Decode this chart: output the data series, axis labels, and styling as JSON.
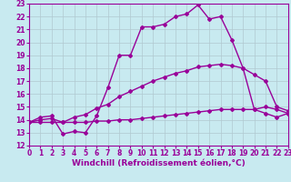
{
  "xlabel": "Windchill (Refroidissement éolien,°C)",
  "ylabel": "",
  "xlim": [
    0,
    23
  ],
  "ylim": [
    12,
    23
  ],
  "xticks": [
    0,
    1,
    2,
    3,
    4,
    5,
    6,
    7,
    8,
    9,
    10,
    11,
    12,
    13,
    14,
    15,
    16,
    17,
    18,
    19,
    20,
    21,
    22,
    23
  ],
  "yticks": [
    12,
    13,
    14,
    15,
    16,
    17,
    18,
    19,
    20,
    21,
    22,
    23
  ],
  "bg_color": "#c8eaf0",
  "line_color": "#990099",
  "grid_color": "#b0c8d0",
  "line1_x": [
    0,
    1,
    2,
    3,
    4,
    5,
    6,
    7,
    8,
    9,
    10,
    11,
    12,
    13,
    14,
    15,
    16,
    17,
    18,
    19,
    20,
    21,
    22,
    23
  ],
  "line1_y": [
    13.8,
    14.2,
    14.3,
    12.9,
    13.1,
    13.0,
    14.3,
    16.5,
    19.0,
    19.0,
    21.2,
    21.2,
    21.4,
    22.0,
    22.2,
    22.9,
    21.8,
    22.0,
    20.2,
    18.0,
    14.8,
    15.0,
    14.8,
    14.5
  ],
  "line2_x": [
    0,
    1,
    2,
    3,
    4,
    5,
    6,
    7,
    8,
    9,
    10,
    11,
    12,
    13,
    14,
    15,
    16,
    17,
    18,
    19,
    20,
    21,
    22,
    23
  ],
  "line2_y": [
    13.8,
    14.0,
    14.1,
    13.8,
    14.2,
    14.4,
    14.9,
    15.2,
    15.8,
    16.2,
    16.6,
    17.0,
    17.3,
    17.6,
    17.8,
    18.1,
    18.2,
    18.3,
    18.2,
    18.0,
    17.5,
    17.0,
    15.0,
    14.7
  ],
  "line3_x": [
    0,
    1,
    2,
    3,
    4,
    5,
    6,
    7,
    8,
    9,
    10,
    11,
    12,
    13,
    14,
    15,
    16,
    17,
    18,
    19,
    20,
    21,
    22,
    23
  ],
  "line3_y": [
    13.8,
    13.8,
    13.8,
    13.8,
    13.8,
    13.8,
    13.9,
    13.9,
    14.0,
    14.0,
    14.1,
    14.2,
    14.3,
    14.4,
    14.5,
    14.6,
    14.7,
    14.8,
    14.8,
    14.8,
    14.8,
    14.5,
    14.2,
    14.5
  ],
  "marker": "D",
  "marker_size": 2,
  "line_width": 1.0,
  "tick_fontsize": 5.5,
  "label_fontsize": 6.5
}
